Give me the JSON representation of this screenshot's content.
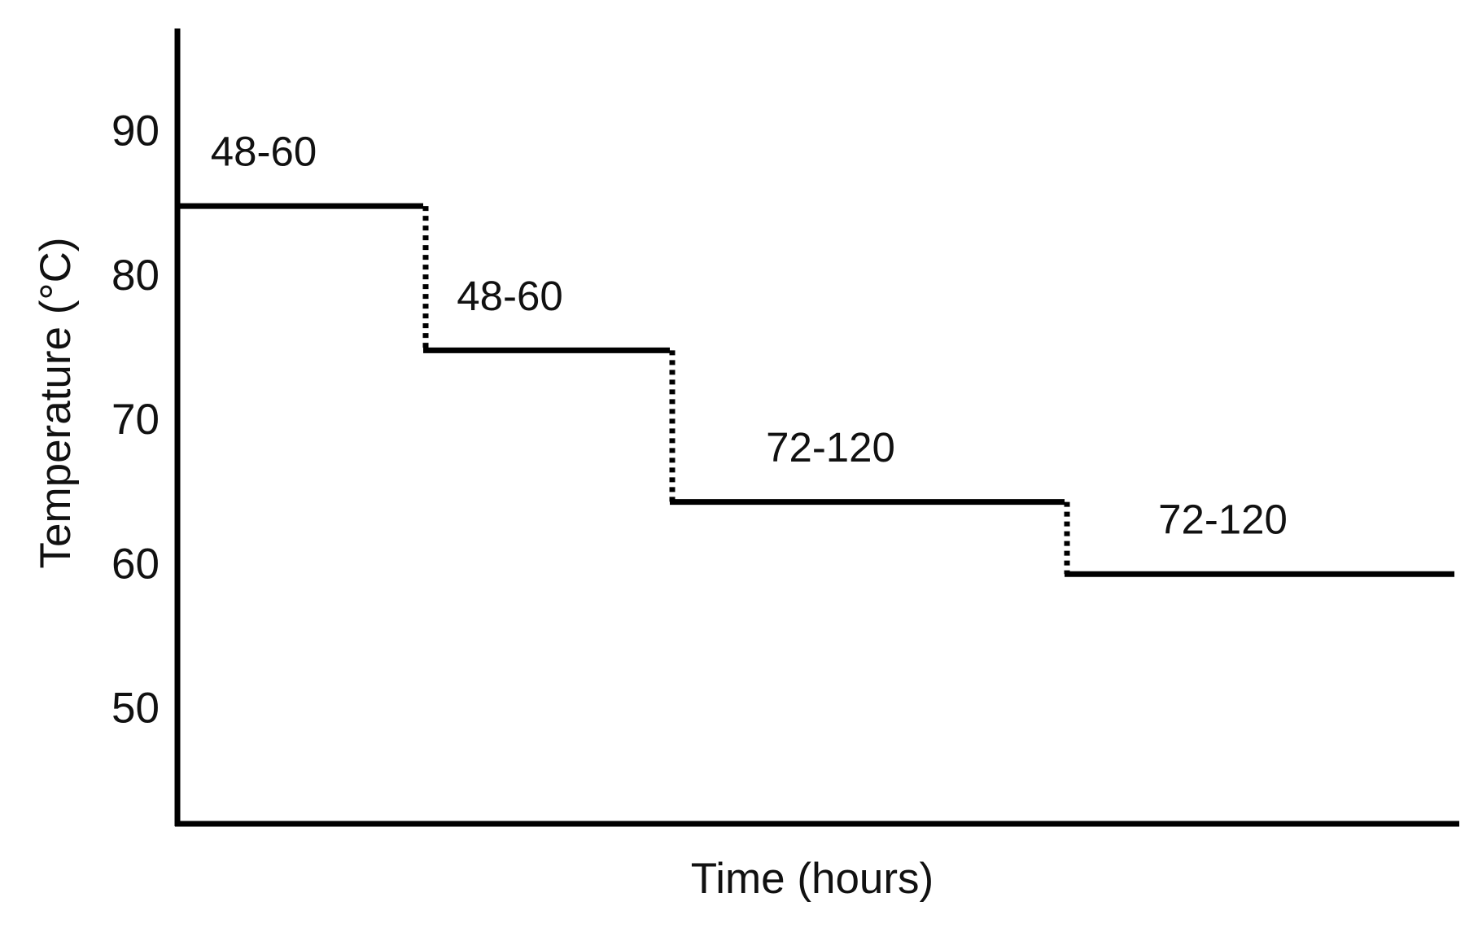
{
  "chart_data": {
    "type": "step",
    "x_label": "Time (hours)",
    "y_label": "Temperature (°C)",
    "categories": [
      "48-60",
      "48-60",
      "72-120",
      "72-120"
    ],
    "values": [
      85,
      75,
      64.5,
      59.5
    ],
    "color": "#000000",
    "ylim": [
      42.2,
      97.3
    ],
    "yticks": [
      50,
      60,
      70,
      80,
      90
    ],
    "grid": false
  }
}
